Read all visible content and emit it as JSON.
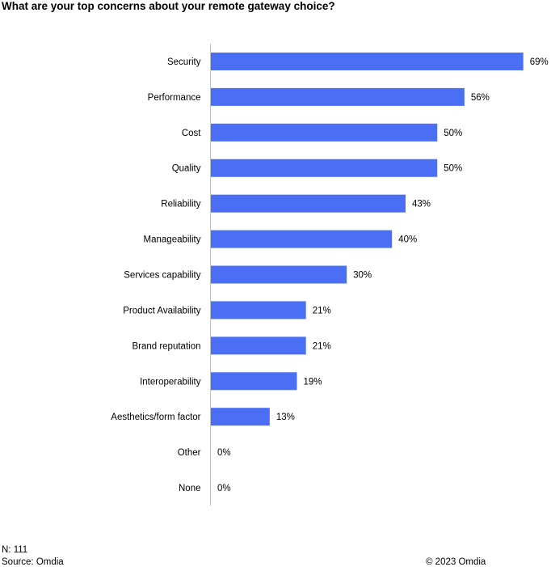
{
  "chart_data": {
    "type": "bar",
    "orientation": "horizontal",
    "title": "What are your top concerns about your remote gateway choice?",
    "categories": [
      "Security",
      "Performance",
      "Cost",
      "Quality",
      "Reliability",
      "Manageability",
      "Services capability",
      "Product Availability",
      "Brand reputation",
      "Interoperability",
      "Aesthetics/form factor",
      "Other",
      "None"
    ],
    "values": [
      69,
      56,
      50,
      50,
      43,
      40,
      30,
      21,
      21,
      19,
      13,
      0,
      0
    ],
    "value_suffix": "%",
    "xlim": [
      0,
      70
    ],
    "grid": false,
    "legend": "none",
    "bar_color": "#4a6ff5"
  },
  "footer": {
    "n": "N: 111",
    "source": "Source: Omdia",
    "copyright": "© 2023 Omdia"
  }
}
